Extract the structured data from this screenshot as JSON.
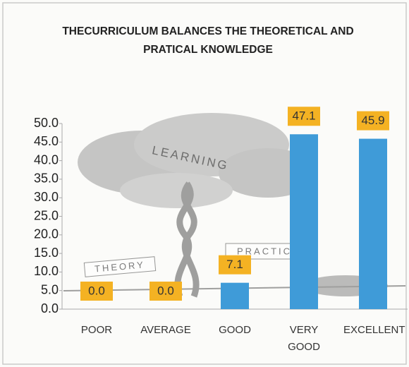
{
  "chart_data": {
    "type": "bar",
    "title": "THECURRICULUM BALANCES THE THEORETICAL AND PRATICAL KNOWLEDGE",
    "annotations": [
      "LEARNING",
      "THEORY",
      "PRACTIC"
    ],
    "categories": [
      "POOR",
      "AVERAGE",
      "GOOD",
      "VERY GOOD",
      "EXCELLENT"
    ],
    "values": [
      0.0,
      0.0,
      7.1,
      47.1,
      45.9
    ],
    "value_labels": [
      "0.0",
      "0.0",
      "7.1",
      "47.1",
      "45.9"
    ],
    "color": "#3f9bd8",
    "ylim": [
      0,
      50
    ],
    "yticks": [
      {
        "value": 0,
        "label": "0.0"
      },
      {
        "value": 5,
        "label": "5.0"
      },
      {
        "value": 10,
        "label": "10.0"
      },
      {
        "value": 15,
        "label": "15.0"
      },
      {
        "value": 20,
        "label": "20.0"
      },
      {
        "value": 25,
        "label": "25.0"
      },
      {
        "value": 30,
        "label": "30.0"
      },
      {
        "value": 35,
        "label": "35.0"
      },
      {
        "value": 40,
        "label": "40.0"
      },
      {
        "value": 45,
        "label": "45.0"
      },
      {
        "value": 50,
        "label": "50.0"
      }
    ],
    "grid": false
  }
}
